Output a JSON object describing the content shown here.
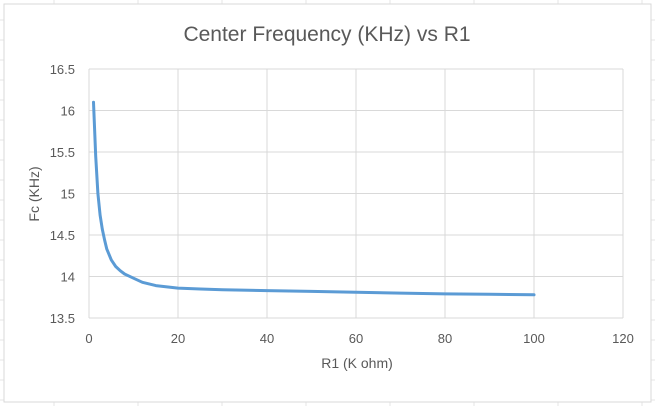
{
  "chart_data": {
    "type": "line",
    "title": "Center Frequency (KHz) vs R1",
    "xlabel": "R1 (K ohm)",
    "ylabel": "Fc (KHz)",
    "xlim": [
      0,
      120
    ],
    "ylim": [
      13.5,
      16.5
    ],
    "x_ticks": [
      0,
      20,
      40,
      60,
      80,
      100,
      120
    ],
    "y_ticks": [
      13.5,
      14,
      14.5,
      15,
      15.5,
      16,
      16.5
    ],
    "grid": true,
    "legend": "none",
    "series": [
      {
        "color": "#5b9bd5",
        "x": [
          1,
          1.5,
          2,
          2.5,
          3,
          3.5,
          4,
          5,
          6,
          7,
          8,
          10,
          12,
          15,
          20,
          25,
          30,
          40,
          50,
          60,
          70,
          80,
          90,
          100
        ],
        "y": [
          16.1,
          15.45,
          15.0,
          14.74,
          14.57,
          14.44,
          14.33,
          14.2,
          14.12,
          14.07,
          14.03,
          13.98,
          13.93,
          13.89,
          13.86,
          13.85,
          13.84,
          13.83,
          13.82,
          13.81,
          13.8,
          13.79,
          13.785,
          13.78
        ]
      }
    ]
  }
}
